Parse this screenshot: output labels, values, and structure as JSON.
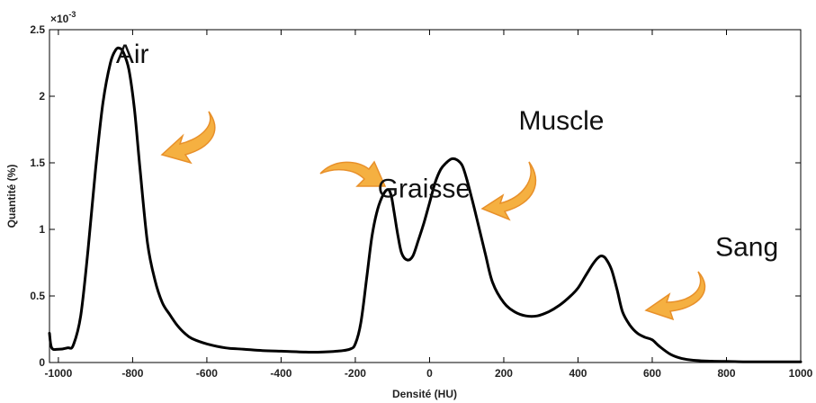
{
  "chart_data": {
    "type": "line",
    "xlabel": "Densité (HU)",
    "ylabel": "Quantité (%)",
    "y_exponent_label": "×10",
    "y_exponent_power": "-3",
    "xlim": [
      -1024,
      1000
    ],
    "ylim": [
      0,
      2.5
    ],
    "grid": false,
    "x_ticks": [
      -1000,
      -800,
      -600,
      -400,
      -200,
      0,
      200,
      400,
      600,
      800,
      1000
    ],
    "x_tick_labels": [
      "-1000",
      "-800",
      "-600",
      "-400",
      "-200",
      "0",
      "200",
      "400",
      "600",
      "800",
      "1000"
    ],
    "y_ticks": [
      0,
      0.5,
      1,
      1.5,
      2,
      2.5
    ],
    "y_tick_labels": [
      "0",
      "0.5",
      "1",
      "1.5",
      "2",
      "2.5"
    ],
    "series": [
      {
        "color": "#000000",
        "x": [
          -1024,
          -1018,
          -1000,
          -975,
          -960,
          -940,
          -920,
          -900,
          -880,
          -860,
          -845,
          -835,
          -825,
          -810,
          -795,
          -780,
          -760,
          -740,
          -720,
          -700,
          -680,
          -660,
          -640,
          -600,
          -550,
          -500,
          -450,
          -400,
          -350,
          -300,
          -250,
          -215,
          -200,
          -185,
          -170,
          -155,
          -140,
          -125,
          -112,
          -103,
          -95,
          -85,
          -75,
          -60,
          -45,
          -30,
          -15,
          0,
          15,
          30,
          45,
          60,
          75,
          88,
          100,
          115,
          130,
          150,
          170,
          200,
          230,
          260,
          290,
          320,
          350,
          380,
          400,
          420,
          440,
          455,
          465,
          475,
          490,
          505,
          520,
          540,
          560,
          580,
          600,
          620,
          650,
          680,
          720,
          760,
          800,
          850,
          900,
          1000
        ],
        "y": [
          0.22,
          0.11,
          0.1,
          0.11,
          0.13,
          0.35,
          0.85,
          1.45,
          1.95,
          2.25,
          2.35,
          2.36,
          2.33,
          2.2,
          1.9,
          1.45,
          0.9,
          0.62,
          0.45,
          0.36,
          0.28,
          0.22,
          0.18,
          0.14,
          0.11,
          0.1,
          0.09,
          0.085,
          0.08,
          0.078,
          0.085,
          0.1,
          0.14,
          0.3,
          0.62,
          0.95,
          1.15,
          1.26,
          1.3,
          1.25,
          1.12,
          0.95,
          0.82,
          0.77,
          0.8,
          0.92,
          1.05,
          1.2,
          1.35,
          1.45,
          1.5,
          1.53,
          1.52,
          1.48,
          1.38,
          1.22,
          1.05,
          0.82,
          0.6,
          0.45,
          0.38,
          0.35,
          0.35,
          0.38,
          0.43,
          0.5,
          0.56,
          0.65,
          0.74,
          0.79,
          0.8,
          0.78,
          0.7,
          0.55,
          0.38,
          0.28,
          0.22,
          0.19,
          0.17,
          0.12,
          0.06,
          0.03,
          0.015,
          0.01,
          0.008,
          0.005,
          0.005,
          0.005
        ]
      }
    ],
    "annotations": [
      {
        "text": "Air",
        "x": -845,
        "y": 2.25
      },
      {
        "text": "Graisse",
        "x": -140,
        "y": 1.24
      },
      {
        "text": "Muscle",
        "x": 240,
        "y": 1.75
      },
      {
        "text": "Sang",
        "x": 770,
        "y": 0.8
      }
    ],
    "arrow_color": "#f5b041",
    "arrow_stroke": "#e8902a"
  }
}
